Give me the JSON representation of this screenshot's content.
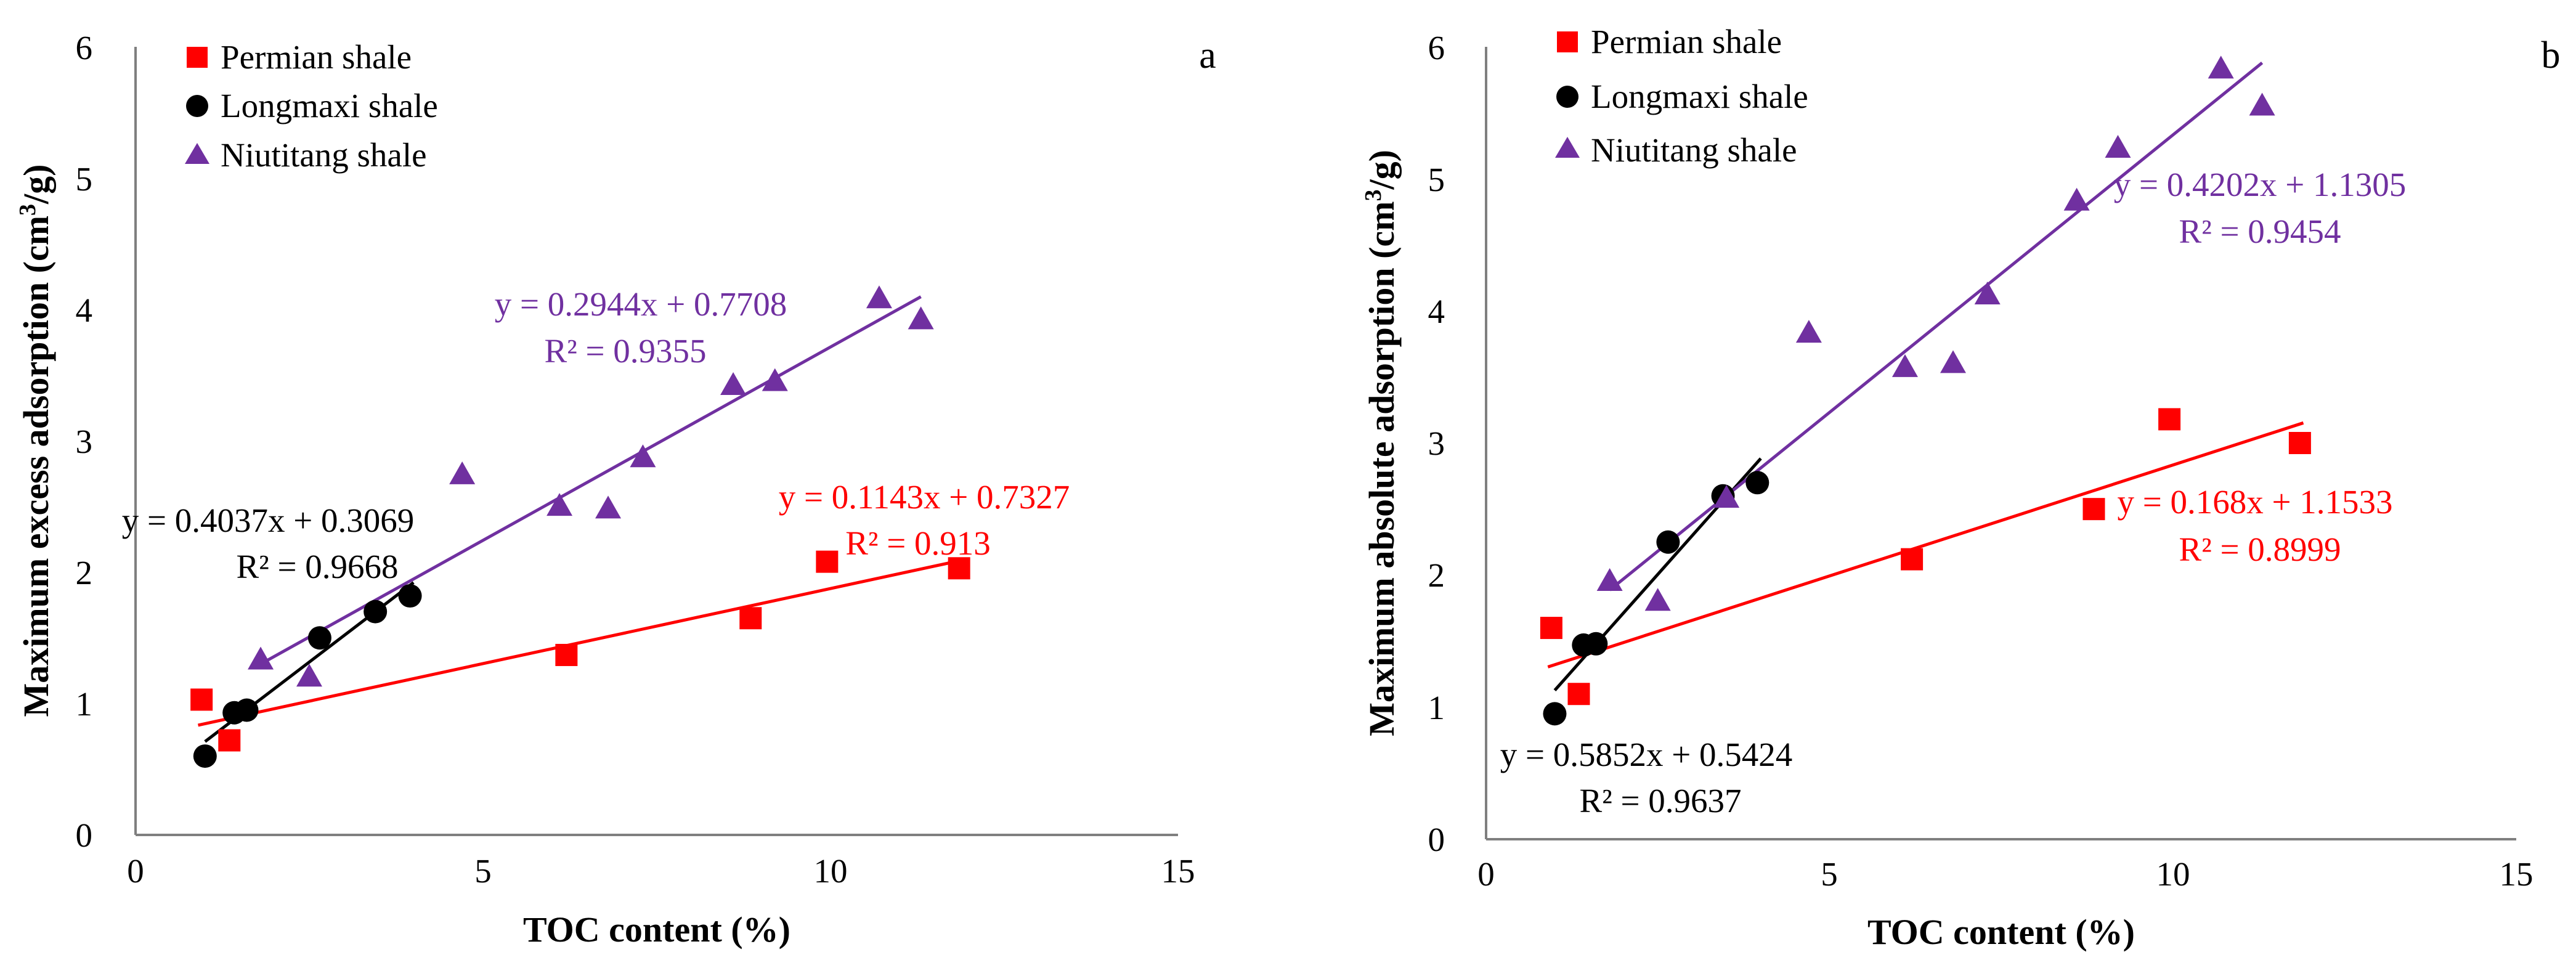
{
  "chart_data": [
    {
      "type": "scatter",
      "panel_label": "a",
      "xlabel": "TOC content (%)",
      "ylabel_main": "Maximum excess adsorption (cm",
      "ylabel_sup": "3",
      "ylabel_end": "/g)",
      "xlim": [
        0,
        15
      ],
      "ylim": [
        0,
        6
      ],
      "xticks": [
        0,
        5,
        10,
        15
      ],
      "yticks": [
        0,
        1,
        2,
        3,
        4,
        5,
        6
      ],
      "grid": false,
      "legend_position": "top-left",
      "series": [
        {
          "name": "Permian shale",
          "marker": "square",
          "color": "#ff0000",
          "x": [
            0.95,
            1.35,
            6.2,
            8.85,
            9.95,
            11.85
          ],
          "y": [
            1.03,
            0.72,
            1.37,
            1.65,
            2.08,
            2.03
          ],
          "trend": {
            "slope": 0.1143,
            "intercept": 0.7327,
            "x_range": [
              0.9,
              11.9
            ]
          },
          "equation": "y = 0.1143x + 0.7327",
          "r2": "R² = 0.913"
        },
        {
          "name": "Longmaxi shale",
          "marker": "circle",
          "color": "#000000",
          "x": [
            1.0,
            1.42,
            1.6,
            2.65,
            3.45,
            3.95
          ],
          "y": [
            0.6,
            0.93,
            0.95,
            1.5,
            1.7,
            1.82
          ],
          "trend": {
            "slope": 0.4037,
            "intercept": 0.3069,
            "x_range": [
              1.0,
              4.0
            ]
          },
          "equation": "y = 0.4037x + 0.3069",
          "r2": "R² = 0.9668"
        },
        {
          "name": "Niutitang shale",
          "marker": "triangle",
          "color": "#7030a0",
          "x": [
            1.8,
            2.5,
            4.7,
            6.1,
            6.8,
            7.3,
            8.6,
            9.2,
            10.7,
            11.3
          ],
          "y": [
            1.33,
            1.2,
            2.74,
            2.5,
            2.48,
            2.87,
            3.42,
            3.45,
            4.08,
            3.92
          ],
          "trend": {
            "slope": 0.2944,
            "intercept": 0.7708,
            "x_range": [
              1.8,
              11.3
            ]
          },
          "equation": "y = 0.2944x + 0.7708",
          "r2": "R² = 0.9355"
        }
      ]
    },
    {
      "type": "scatter",
      "panel_label": "b",
      "xlabel": "TOC content (%)",
      "ylabel_main": "Maximum absolute adsorption (cm",
      "ylabel_sup": "3",
      "ylabel_end": "/g)",
      "xlim": [
        0,
        15
      ],
      "ylim": [
        0,
        6
      ],
      "xticks": [
        0,
        5,
        10,
        15
      ],
      "yticks": [
        0,
        1,
        2,
        3,
        4,
        5,
        6
      ],
      "grid": false,
      "legend_position": "top-left",
      "series": [
        {
          "name": "Permian shale",
          "marker": "square",
          "color": "#ff0000",
          "x": [
            0.95,
            1.35,
            6.2,
            8.85,
            9.95,
            11.85
          ],
          "y": [
            1.6,
            1.1,
            2.12,
            2.5,
            3.18,
            3.0
          ],
          "trend": {
            "slope": 0.168,
            "intercept": 1.1533,
            "x_range": [
              0.9,
              11.9
            ]
          },
          "equation": "y = 0.168x + 1.1533",
          "r2": "R² = 0.8999"
        },
        {
          "name": "Longmaxi shale",
          "marker": "circle",
          "color": "#000000",
          "x": [
            1.0,
            1.42,
            1.6,
            2.65,
            3.45,
            3.95
          ],
          "y": [
            0.95,
            1.47,
            1.48,
            2.25,
            2.6,
            2.7
          ],
          "trend": {
            "slope": 0.5852,
            "intercept": 0.5424,
            "x_range": [
              1.0,
              4.0
            ]
          },
          "equation": "y = 0.5852x + 0.5424",
          "r2": "R² = 0.9637"
        },
        {
          "name": "Niutitang shale",
          "marker": "triangle",
          "color": "#7030a0",
          "x": [
            1.8,
            2.5,
            3.5,
            4.7,
            6.1,
            6.8,
            7.3,
            8.6,
            9.2,
            10.7,
            11.3
          ],
          "y": [
            1.95,
            1.8,
            2.58,
            3.83,
            3.57,
            3.6,
            4.12,
            4.83,
            5.23,
            5.83,
            5.55
          ],
          "trend": {
            "slope": 0.4202,
            "intercept": 1.1305,
            "x_range": [
              1.8,
              11.3
            ]
          },
          "equation": "y = 0.4202x + 1.1305",
          "r2": "R² = 0.9454"
        }
      ]
    }
  ]
}
